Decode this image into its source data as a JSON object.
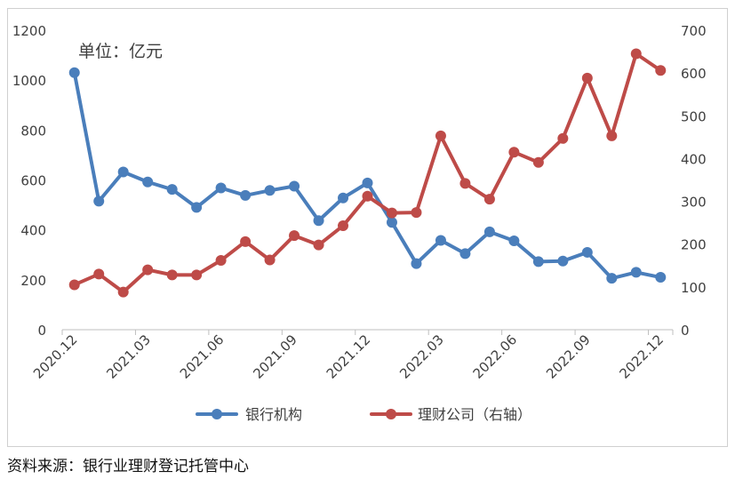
{
  "chart_data": {
    "type": "line",
    "unit_note": "单位：亿元",
    "x": [
      "2020.12",
      "2021.01",
      "2021.02",
      "2021.03",
      "2021.04",
      "2021.05",
      "2021.06",
      "2021.07",
      "2021.08",
      "2021.09",
      "2021.10",
      "2021.11",
      "2021.12",
      "2022.01",
      "2022.02",
      "2022.03",
      "2022.04",
      "2022.05",
      "2022.06",
      "2022.07",
      "2022.08",
      "2022.09",
      "2022.10",
      "2022.11",
      "2022.12"
    ],
    "x_tick_labels": [
      "2020.12",
      "2021.03",
      "2021.06",
      "2021.09",
      "2021.12",
      "2022.03",
      "2022.06",
      "2022.09",
      "2022.12"
    ],
    "y_left": {
      "ylim": [
        0,
        1200
      ],
      "ticks": [
        "0",
        "200",
        "400",
        "600",
        "800",
        "1000",
        "1200"
      ]
    },
    "y_right": {
      "ylim": [
        0,
        700
      ],
      "ticks": [
        "0",
        "100",
        "200",
        "300",
        "400",
        "500",
        "600",
        "700"
      ]
    },
    "series": [
      {
        "name": "银行机构",
        "axis": "left",
        "color": "#4a7ebb",
        "values": [
          1030,
          515,
          632,
          592,
          562,
          490,
          568,
          538,
          558,
          575,
          437,
          528,
          588,
          430,
          265,
          358,
          305,
          392,
          356,
          273,
          275,
          310,
          206,
          230,
          210
        ]
      },
      {
        "name": "理财公司（右轴）",
        "axis": "right",
        "color": "#be4b48",
        "values": [
          105,
          130,
          88,
          140,
          128,
          128,
          162,
          206,
          163,
          220,
          198,
          243,
          312,
          273,
          274,
          453,
          342,
          305,
          415,
          391,
          447,
          588,
          453,
          645,
          606
        ]
      }
    ],
    "grid": false,
    "legend": "bottom"
  },
  "source": "资料来源：银行业理财登记托管中心"
}
